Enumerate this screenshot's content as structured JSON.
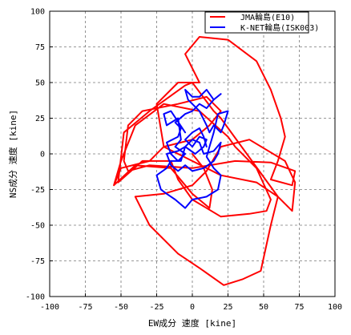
{
  "chart_data": {
    "type": "line",
    "xlabel": "EW成分 速度 [kine]",
    "ylabel": "NS成分 速度 [kine]",
    "xlim": [
      -100,
      100
    ],
    "ylim": [
      -100,
      100
    ],
    "xticks": [
      -100,
      -75,
      -50,
      -25,
      0,
      25,
      50,
      75,
      100
    ],
    "yticks": [
      -100,
      -75,
      -50,
      -25,
      0,
      25,
      50,
      75,
      100
    ],
    "grid": true,
    "legend_position": "top-right",
    "series": [
      {
        "name": "JMA輪島(E10)",
        "color": "#ff0000",
        "points": [
          [
            0,
            0
          ],
          [
            8,
            -10
          ],
          [
            14,
            -25
          ],
          [
            12,
            -38
          ],
          [
            0,
            -28
          ],
          [
            -15,
            -10
          ],
          [
            -40,
            -8
          ],
          [
            -55,
            -22
          ],
          [
            -50,
            -5
          ],
          [
            -40,
            20
          ],
          [
            -20,
            35
          ],
          [
            5,
            30
          ],
          [
            25,
            12
          ],
          [
            30,
            5
          ],
          [
            45,
            -10
          ],
          [
            55,
            -32
          ],
          [
            52,
            -40
          ],
          [
            40,
            -42
          ],
          [
            20,
            -44
          ],
          [
            0,
            -32
          ],
          [
            -10,
            -18
          ],
          [
            -15,
            -5
          ],
          [
            -35,
            -5
          ],
          [
            -52,
            -20
          ],
          [
            -48,
            15
          ],
          [
            -30,
            30
          ],
          [
            -5,
            48
          ],
          [
            0,
            50
          ],
          [
            15,
            30
          ],
          [
            20,
            25
          ],
          [
            60,
            -30
          ],
          [
            70,
            -40
          ],
          [
            72,
            -20
          ],
          [
            65,
            -5
          ],
          [
            40,
            10
          ],
          [
            20,
            5
          ],
          [
            10,
            -12
          ],
          [
            0,
            -22
          ],
          [
            -20,
            -28
          ],
          [
            -40,
            -30
          ],
          [
            -30,
            -50
          ],
          [
            -10,
            -70
          ],
          [
            5,
            -80
          ],
          [
            22,
            -92
          ],
          [
            35,
            -88
          ],
          [
            48,
            -82
          ],
          [
            55,
            -50
          ],
          [
            60,
            -30
          ],
          [
            45,
            -20
          ],
          [
            20,
            -15
          ],
          [
            0,
            -5
          ],
          [
            -20,
            5
          ],
          [
            -25,
            35
          ],
          [
            -10,
            50
          ],
          [
            5,
            50
          ],
          [
            -5,
            70
          ],
          [
            5,
            82
          ],
          [
            25,
            80
          ],
          [
            45,
            65
          ],
          [
            55,
            45
          ],
          [
            62,
            25
          ],
          [
            65,
            12
          ],
          [
            60,
            -5
          ],
          [
            55,
            -18
          ],
          [
            70,
            -22
          ],
          [
            72,
            -12
          ],
          [
            55,
            -6
          ],
          [
            30,
            -5
          ],
          [
            0,
            -10
          ],
          [
            -30,
            -8
          ],
          [
            -45,
            -12
          ],
          [
            -48,
            -5
          ],
          [
            -45,
            20
          ],
          [
            -35,
            30
          ],
          [
            -10,
            35
          ],
          [
            10,
            40
          ],
          [
            20,
            30
          ],
          [
            12,
            20
          ],
          [
            0,
            10
          ],
          [
            -20,
            5
          ],
          [
            -30,
            -5
          ],
          [
            -50,
            -10
          ],
          [
            -55,
            -22
          ]
        ]
      },
      {
        "name": "K-NET輪島(ISK003)",
        "color": "#0000ff",
        "points": [
          [
            -5,
            15
          ],
          [
            -15,
            30
          ],
          [
            -20,
            28
          ],
          [
            -18,
            20
          ],
          [
            -10,
            25
          ],
          [
            -8,
            10
          ],
          [
            -12,
            5
          ],
          [
            -5,
            0
          ],
          [
            -10,
            -5
          ],
          [
            -15,
            0
          ],
          [
            -18,
            8
          ],
          [
            -10,
            12
          ],
          [
            -8,
            18
          ],
          [
            -12,
            22
          ],
          [
            -5,
            28
          ],
          [
            0,
            30
          ],
          [
            5,
            35
          ],
          [
            10,
            32
          ],
          [
            15,
            38
          ],
          [
            20,
            42
          ],
          [
            15,
            38
          ],
          [
            10,
            45
          ],
          [
            5,
            40
          ],
          [
            0,
            40
          ],
          [
            -5,
            45
          ],
          [
            -3,
            38
          ],
          [
            5,
            30
          ],
          [
            10,
            20
          ],
          [
            12,
            15
          ],
          [
            15,
            20
          ],
          [
            20,
            15
          ],
          [
            22,
            20
          ],
          [
            25,
            30
          ],
          [
            18,
            28
          ],
          [
            15,
            15
          ],
          [
            12,
            5
          ],
          [
            10,
            -2
          ],
          [
            15,
            -10
          ],
          [
            20,
            -15
          ],
          [
            18,
            -25
          ],
          [
            10,
            -30
          ],
          [
            0,
            -32
          ],
          [
            -5,
            -38
          ],
          [
            -12,
            -32
          ],
          [
            -18,
            -28
          ],
          [
            -22,
            -25
          ],
          [
            -25,
            -15
          ],
          [
            -18,
            -10
          ],
          [
            -15,
            -5
          ],
          [
            -8,
            -5
          ],
          [
            -5,
            5
          ],
          [
            0,
            10
          ],
          [
            5,
            8
          ],
          [
            8,
            0
          ],
          [
            15,
            2
          ],
          [
            20,
            8
          ],
          [
            18,
            0
          ],
          [
            15,
            -5
          ],
          [
            8,
            -10
          ],
          [
            0,
            -12
          ],
          [
            -5,
            -8
          ],
          [
            -10,
            -12
          ],
          [
            -15,
            -8
          ],
          [
            -18,
            0
          ],
          [
            -10,
            2
          ],
          [
            -5,
            5
          ],
          [
            2,
            0
          ],
          [
            8,
            5
          ],
          [
            10,
            10
          ],
          [
            5,
            12
          ],
          [
            0,
            5
          ],
          [
            -5,
            10
          ],
          [
            0,
            15
          ],
          [
            5,
            18
          ],
          [
            8,
            12
          ],
          [
            10,
            5
          ]
        ]
      }
    ]
  }
}
